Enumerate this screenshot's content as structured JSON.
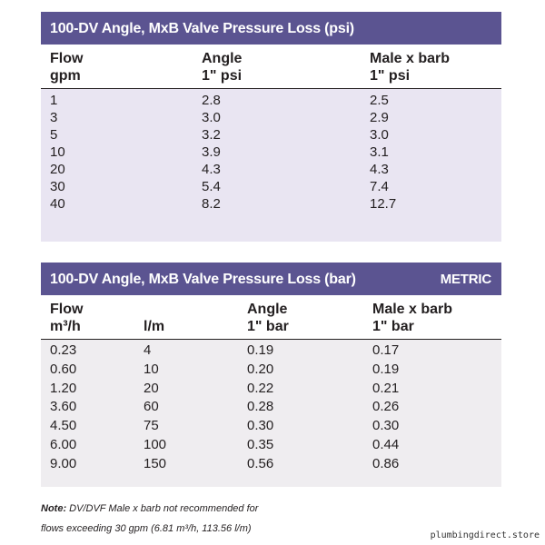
{
  "psi_table": {
    "title": "100-DV Angle, MxB Valve Pressure Loss (psi)",
    "headers": [
      {
        "line1": "Flow",
        "line2": "gpm"
      },
      {
        "line1": "Angle",
        "line2": "1\" psi"
      },
      {
        "line1": "Male x barb",
        "line2": "1\" psi"
      }
    ],
    "rows": [
      [
        "1",
        "2.8",
        "2.5"
      ],
      [
        "3",
        "3.0",
        "2.9"
      ],
      [
        "5",
        "3.2",
        "3.0"
      ],
      [
        "10",
        "3.9",
        "3.1"
      ],
      [
        "20",
        "4.3",
        "4.3"
      ],
      [
        "30",
        "5.4",
        "7.4"
      ],
      [
        "40",
        "8.2",
        "12.7"
      ]
    ]
  },
  "bar_table": {
    "title": "100-DV Angle, MxB Valve Pressure Loss (bar)",
    "badge": "METRIC",
    "headers": [
      {
        "line1": "Flow",
        "line2": "m³/h"
      },
      {
        "line1": "",
        "line2": "l/m"
      },
      {
        "line1": "Angle",
        "line2": "1\" bar"
      },
      {
        "line1": "Male x barb",
        "line2": "1\" bar"
      }
    ],
    "rows": [
      [
        "0.23",
        "4",
        "0.19",
        "0.17"
      ],
      [
        "0.60",
        "10",
        "0.20",
        "0.19"
      ],
      [
        "1.20",
        "20",
        "0.22",
        "0.21"
      ],
      [
        "3.60",
        "60",
        "0.28",
        "0.26"
      ],
      [
        "4.50",
        "75",
        "0.30",
        "0.30"
      ],
      [
        "6.00",
        "100",
        "0.35",
        "0.44"
      ],
      [
        "9.00",
        "150",
        "0.56",
        "0.86"
      ]
    ]
  },
  "note": {
    "label": "Note:",
    "line1": " DV/DVF Male x barb not recommended for",
    "line2": "flows exceeding 30 gpm (6.81 m³/h, 113.56 l/m)"
  },
  "watermark": "plumbingdirect.store"
}
